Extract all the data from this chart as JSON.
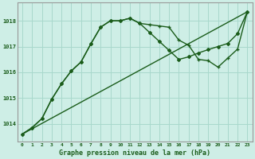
{
  "title": "Graphe pression niveau de la mer (hPa)",
  "background_color": "#ceeee6",
  "grid_color": "#a8d8cc",
  "line_color": "#1a5c1a",
  "x_ticks": [
    0,
    1,
    2,
    3,
    4,
    5,
    6,
    7,
    8,
    9,
    10,
    11,
    12,
    13,
    14,
    15,
    16,
    17,
    18,
    19,
    20,
    21,
    22,
    23
  ],
  "y_ticks": [
    1014,
    1015,
    1016,
    1017,
    1018
  ],
  "ylim": [
    1013.3,
    1018.7
  ],
  "xlim": [
    -0.5,
    23.5
  ],
  "series1_x": [
    0,
    1,
    2,
    3,
    4,
    5,
    6,
    7,
    8,
    9,
    10,
    11,
    12,
    13,
    14,
    15,
    16,
    17,
    18,
    19,
    20,
    21,
    22,
    23
  ],
  "series1_y": [
    1013.6,
    1013.85,
    1014.2,
    1014.95,
    1015.55,
    1016.05,
    1016.4,
    1017.1,
    1017.75,
    1018.0,
    1018.0,
    1018.1,
    1017.9,
    1017.85,
    1017.8,
    1017.75,
    1017.25,
    1017.05,
    1016.5,
    1016.45,
    1016.2,
    1016.55,
    1016.9,
    1018.35
  ],
  "series2_x": [
    0,
    1,
    2,
    3,
    4,
    5,
    6,
    7,
    8,
    9,
    10,
    11,
    12,
    13,
    14,
    15,
    16,
    17,
    18,
    19,
    20,
    21,
    22,
    23
  ],
  "series2_y": [
    1013.6,
    1013.85,
    1014.2,
    1014.95,
    1015.55,
    1016.05,
    1016.4,
    1017.1,
    1017.75,
    1018.0,
    1018.0,
    1018.1,
    1017.9,
    1017.55,
    1017.2,
    1016.85,
    1016.5,
    1016.6,
    1016.75,
    1016.88,
    1017.0,
    1017.12,
    1017.5,
    1018.35
  ],
  "series3_x": [
    0,
    23
  ],
  "series3_y": [
    1013.6,
    1018.35
  ]
}
